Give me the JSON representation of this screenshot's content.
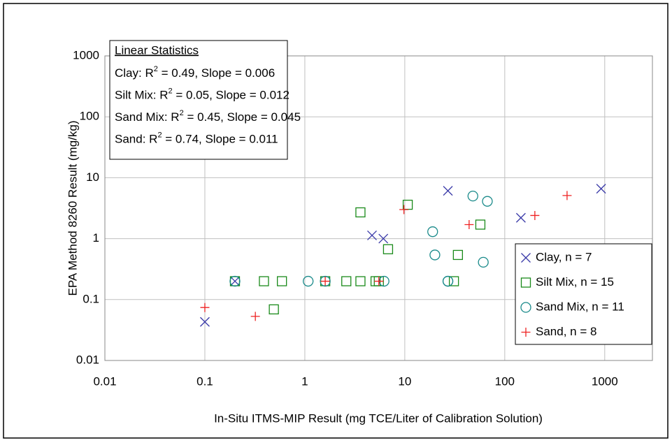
{
  "chart_data": {
    "type": "scatter",
    "x_label": "In-Situ ITMS-MIP Result (mg TCE/Liter of Calibration Solution)",
    "y_label": "EPA Method 8260 Result (mg/kg)",
    "x_scale": "log",
    "y_scale": "log",
    "xlim": [
      0.01,
      3000
    ],
    "ylim": [
      0.01,
      1000
    ],
    "xticks": [
      0.01,
      0.1,
      1,
      10,
      100,
      1000
    ],
    "yticks": [
      0.01,
      0.1,
      1,
      10,
      100,
      1000
    ],
    "grid": true,
    "legend": "right",
    "annotation": {
      "title": "Linear Statistics",
      "lines": [
        {
          "prefix": "Clay: R",
          "sup": "2",
          "suffix": " = 0.49, Slope = 0.006"
        },
        {
          "prefix": "Silt Mix: R",
          "sup": "2",
          "suffix": " = 0.05, Slope = 0.012"
        },
        {
          "prefix": "Sand Mix: R",
          "sup": "2",
          "suffix": " = 0.45, Slope = 0.045"
        },
        {
          "prefix": "Sand: R",
          "sup": "2",
          "suffix": " = 0.74, Slope = 0.011"
        }
      ]
    },
    "series": [
      {
        "name": "Clay, n = 7",
        "marker": "x",
        "color": "#3a3aa8",
        "x": [
          0.1,
          0.2,
          4.7,
          6.1,
          27,
          145,
          920
        ],
        "values": [
          0.043,
          0.2,
          1.13,
          1.0,
          6.1,
          2.2,
          6.6
        ]
      },
      {
        "name": "Silt Mix, n = 15",
        "marker": "square",
        "color": "#1a8a1a",
        "x": [
          0.2,
          0.49,
          0.39,
          0.59,
          1.6,
          2.6,
          3.6,
          5.1,
          5.5,
          3.6,
          6.8,
          10.7,
          31,
          34,
          57
        ],
        "values": [
          0.2,
          0.069,
          0.2,
          0.2,
          0.2,
          0.2,
          0.2,
          0.2,
          0.2,
          2.7,
          0.67,
          3.6,
          0.2,
          0.54,
          1.7
        ]
      },
      {
        "name": "Sand Mix, n = 11",
        "marker": "circle",
        "color": "#1a8a8a",
        "x": [
          0.2,
          1.08,
          1.6,
          6.2,
          19,
          20,
          27,
          27,
          48,
          67,
          61
        ],
        "values": [
          0.2,
          0.2,
          0.2,
          0.2,
          1.3,
          0.54,
          0.2,
          0.2,
          5.0,
          4.1,
          0.41
        ]
      },
      {
        "name": "Sand, n = 8",
        "marker": "plus",
        "color": "#ee2222",
        "x": [
          0.1,
          0.32,
          1.6,
          5.5,
          9.8,
          44,
          200,
          420
        ],
        "values": [
          0.074,
          0.053,
          0.2,
          0.2,
          3.0,
          1.7,
          2.4,
          5.1
        ]
      }
    ]
  }
}
